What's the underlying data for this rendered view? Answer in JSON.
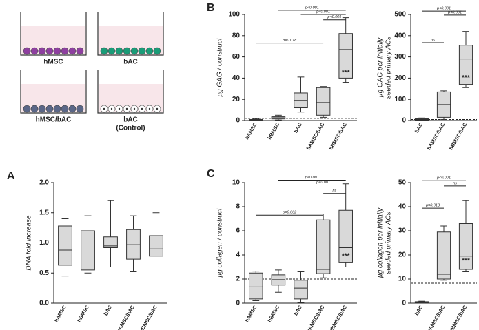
{
  "panels": [
    "A",
    "B",
    "C"
  ],
  "diagram": {
    "wells": [
      {
        "label": [
          "hMSC"
        ],
        "color": "#8e3fa0"
      },
      {
        "label": [
          "bAC"
        ],
        "color": "#1a9c78"
      },
      {
        "label": [
          "hMSC/bAC"
        ],
        "color": "#5b6788"
      },
      {
        "label": [
          "bAC",
          "(Control)"
        ],
        "color": "#ffffff"
      }
    ]
  },
  "chart_data": [
    {
      "type": "box",
      "ylabel": [
        "DNA fold increase"
      ],
      "color": "#d9d9d9",
      "categories": [
        "hAMSC",
        "hBMSC",
        "bAC",
        "hAMSC/bAC",
        "hBMSC/bAC"
      ],
      "boxes": [
        {
          "min": 0.45,
          "q1": 0.63,
          "median": 0.88,
          "q3": 1.28,
          "max": 1.4
        },
        {
          "min": 0.5,
          "q1": 0.55,
          "median": 0.6,
          "q3": 1.2,
          "max": 1.45
        },
        {
          "min": 0.6,
          "q1": 0.92,
          "median": 0.95,
          "q3": 1.1,
          "max": 1.7
        },
        {
          "min": 0.52,
          "q1": 0.73,
          "median": 0.97,
          "q3": 1.22,
          "max": 1.45
        },
        {
          "min": 0.68,
          "q1": 0.78,
          "median": 0.9,
          "q3": 1.12,
          "max": 1.5
        }
      ],
      "ylim": [
        0,
        2
      ],
      "yticks": [
        {
          "value": 0,
          "label": "0.0"
        },
        0.5,
        {
          "value": 1,
          "label": "1.0"
        },
        1.5,
        {
          "value": 2,
          "label": "2.0"
        }
      ],
      "refline": 1,
      "brackets": [],
      "annotations": []
    },
    {
      "type": "box",
      "ylabel": [
        "µg GAG / construct"
      ],
      "color": "#d9d9d9",
      "categories": [
        "hAMSC",
        "hBMSC",
        "bAC",
        "hAMSC/bAC",
        "hBMSC/bAC"
      ],
      "boxes": [
        {
          "min": 0,
          "q1": 0.3,
          "median": 0.5,
          "q3": 1,
          "max": 1.5
        },
        {
          "min": 0.5,
          "q1": 1.5,
          "median": 2.5,
          "q3": 3.5,
          "max": 5
        },
        {
          "min": 8,
          "q1": 12,
          "median": 19,
          "q3": 26,
          "max": 41
        },
        {
          "min": 3,
          "q1": 5,
          "median": 17,
          "q3": 31,
          "max": 32
        },
        {
          "min": 36,
          "q1": 40,
          "median": 67,
          "q3": 82,
          "max": 97
        }
      ],
      "ylim": [
        0,
        100
      ],
      "yticks": [
        0,
        20,
        40,
        60,
        80,
        100
      ],
      "refline": 2,
      "brackets": [
        {
          "text": "p=0.018",
          "from": 0,
          "to": 3,
          "y": 73
        },
        {
          "text": "p<0.001",
          "from": 1,
          "to": 4,
          "y": 104
        },
        {
          "text": "p<0.001",
          "from": 2,
          "to": 4,
          "y": 100
        },
        {
          "text": "p<0.001",
          "from": 3,
          "to": 4,
          "y": 95
        }
      ],
      "annotations": [
        {
          "text": "***",
          "category": 4,
          "y": 45
        }
      ]
    },
    {
      "type": "box",
      "ylabel": [
        "µg GAG per initially",
        "seeded primary ACs"
      ],
      "color": "#d9d9d9",
      "categories": [
        "bAC",
        "hAMSC/bAC",
        "hBMSC/bAC"
      ],
      "boxes": [
        {
          "min": 0,
          "q1": 2,
          "median": 5,
          "q3": 8,
          "max": 12
        },
        {
          "min": 5,
          "q1": 15,
          "median": 75,
          "q3": 135,
          "max": 140
        },
        {
          "min": 155,
          "q1": 170,
          "median": 290,
          "q3": 355,
          "max": 420
        }
      ],
      "ylim": [
        0,
        500
      ],
      "yticks": [
        0,
        100,
        200,
        300,
        400,
        500
      ],
      "refline": 5,
      "brackets": [
        {
          "text": "ns",
          "from": 0,
          "to": 1,
          "y": 367
        },
        {
          "text": "p<0.001",
          "from": 0,
          "to": 2,
          "y": 516
        },
        {
          "text": "p<0.001",
          "from": 1,
          "to": 2,
          "y": 497
        }
      ],
      "annotations": [
        {
          "text": "***",
          "category": 2,
          "y": 200
        }
      ]
    },
    {
      "type": "box",
      "ylabel": [
        "µg collagen / construct"
      ],
      "color": "#d9d9d9",
      "categories": [
        "hAMSC",
        "hBMSC",
        "bAC",
        "hAMSC/bAC",
        "hBMSC/bAC"
      ],
      "boxes": [
        {
          "min": 0.2,
          "q1": 0.35,
          "median": 1.35,
          "q3": 2.5,
          "max": 2.65
        },
        {
          "min": 0.9,
          "q1": 1.5,
          "median": 1.95,
          "q3": 2.35,
          "max": 2.75
        },
        {
          "min": 0.05,
          "q1": 0.35,
          "median": 1.25,
          "q3": 1.9,
          "max": 2.6
        },
        {
          "min": 2.1,
          "q1": 2.45,
          "median": 2.8,
          "q3": 6.9,
          "max": 7.4
        },
        {
          "min": 3,
          "q1": 3.35,
          "median": 4.6,
          "q3": 7.7,
          "max": 9.9
        }
      ],
      "ylim": [
        0,
        10
      ],
      "yticks": [
        0,
        2,
        4,
        6,
        8,
        10
      ],
      "refline": 2,
      "brackets": [
        {
          "text": "p=0.002",
          "from": 0,
          "to": 3,
          "y": 7.3
        },
        {
          "text": "p<0.001",
          "from": 1,
          "to": 4,
          "y": 10.2
        },
        {
          "text": "p<0.001",
          "from": 2,
          "to": 4,
          "y": 9.8
        },
        {
          "text": "ns",
          "from": 3,
          "to": 4,
          "y": 9.1
        }
      ],
      "annotations": [
        {
          "text": "***",
          "category": 4,
          "y": 3.9
        }
      ]
    },
    {
      "type": "box",
      "ylabel": [
        "µg collagen per initially",
        "seeded primary ACs"
      ],
      "color": "#d9d9d9",
      "categories": [
        "bAC",
        "hAMSC/bAC",
        "hBMSC/bAC"
      ],
      "boxes": [
        {
          "min": 0.1,
          "q1": 0.2,
          "median": 0.4,
          "q3": 0.6,
          "max": 0.8
        },
        {
          "min": 9.5,
          "q1": 10,
          "median": 12,
          "q3": 29.5,
          "max": 32
        },
        {
          "min": 13,
          "q1": 14,
          "median": 19.5,
          "q3": 33,
          "max": 42.5
        }
      ],
      "ylim": [
        0,
        50
      ],
      "yticks": [
        0,
        10,
        20,
        30,
        40,
        50
      ],
      "refline": 8.3,
      "brackets": [
        {
          "text": "p=0.013",
          "from": 0,
          "to": 1,
          "y": 39.4
        },
        {
          "text": "p<0.001",
          "from": 0,
          "to": 2,
          "y": 50.8
        },
        {
          "text": "ns",
          "from": 1,
          "to": 2,
          "y": 48.6
        }
      ],
      "annotations": [
        {
          "text": "***",
          "category": 2,
          "y": 17.5
        }
      ]
    }
  ]
}
